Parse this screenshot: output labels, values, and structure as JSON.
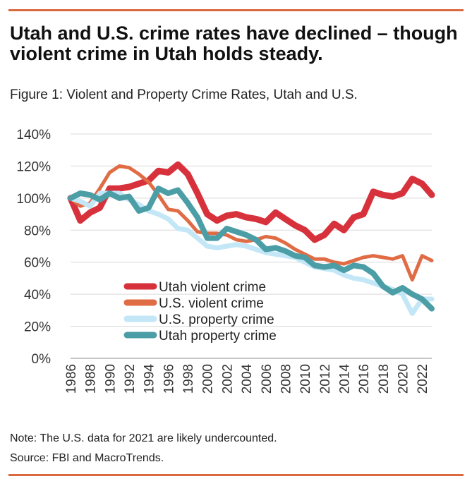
{
  "header": {
    "title": "Utah and U.S. crime rates have declined – though violent crime in Utah holds steady.",
    "subtitle": "Figure 1: Violent and Property Crime Rates, Utah and U.S."
  },
  "footer": {
    "note": "Note: The U.S. data for 2021 are likely undercounted.",
    "source": "Source: FBI and MacroTrends."
  },
  "chart_data": {
    "type": "line",
    "title": "",
    "xlabel": "",
    "ylabel": "",
    "x": [
      1986,
      1987,
      1988,
      1989,
      1990,
      1991,
      1992,
      1993,
      1994,
      1995,
      1996,
      1997,
      1998,
      1999,
      2000,
      2001,
      2002,
      2003,
      2004,
      2005,
      2006,
      2007,
      2008,
      2009,
      2010,
      2011,
      2012,
      2013,
      2014,
      2015,
      2016,
      2017,
      2018,
      2019,
      2020,
      2021,
      2022,
      2023
    ],
    "x_ticks": [
      "1986",
      "1988",
      "1990",
      "1992",
      "1994",
      "1996",
      "1998",
      "2000",
      "2002",
      "2004",
      "2006",
      "2008",
      "2010",
      "2012",
      "2014",
      "2016",
      "2018",
      "2020",
      "2022"
    ],
    "y_ticks": [
      "0%",
      "20%",
      "40%",
      "60%",
      "80%",
      "100%",
      "120%",
      "140%"
    ],
    "ylim": [
      0,
      140
    ],
    "grid": true,
    "legend_position": "center",
    "series": [
      {
        "name": "Utah violent crime",
        "color": "#d7313c",
        "values": [
          100,
          86,
          91,
          94,
          106,
          106,
          107,
          109,
          111,
          117,
          116,
          121,
          115,
          103,
          90,
          86,
          89,
          90,
          88,
          87,
          85,
          91,
          87,
          83,
          80,
          74,
          77,
          84,
          80,
          88,
          90,
          104,
          102,
          101,
          103,
          112,
          109,
          102
        ]
      },
      {
        "name": "U.S. violent crime",
        "color": "#e06c45",
        "values": [
          100,
          95,
          97,
          106,
          116,
          120,
          119,
          115,
          110,
          102,
          93,
          92,
          86,
          79,
          78,
          78,
          77,
          74,
          73,
          74,
          76,
          75,
          72,
          68,
          65,
          62,
          62,
          60,
          59,
          61,
          63,
          64,
          63,
          62,
          64,
          49,
          64,
          61
        ]
      },
      {
        "name": "U.S. property crime",
        "color": "#c4e7f7",
        "values": [
          100,
          98,
          95,
          103,
          103,
          103,
          99,
          96,
          92,
          90,
          87,
          81,
          80,
          75,
          70,
          69,
          70,
          71,
          70,
          68,
          66,
          65,
          64,
          63,
          60,
          57,
          56,
          55,
          52,
          50,
          49,
          47,
          45,
          43,
          40,
          28,
          37,
          37
        ]
      },
      {
        "name": "Utah property crime",
        "color": "#4c9ea6",
        "values": [
          100,
          103,
          102,
          99,
          103,
          100,
          101,
          92,
          94,
          106,
          103,
          105,
          97,
          88,
          75,
          75,
          81,
          79,
          77,
          74,
          68,
          69,
          67,
          64,
          63,
          58,
          57,
          58,
          55,
          58,
          57,
          53,
          45,
          41,
          44,
          40,
          37,
          31
        ]
      }
    ]
  }
}
